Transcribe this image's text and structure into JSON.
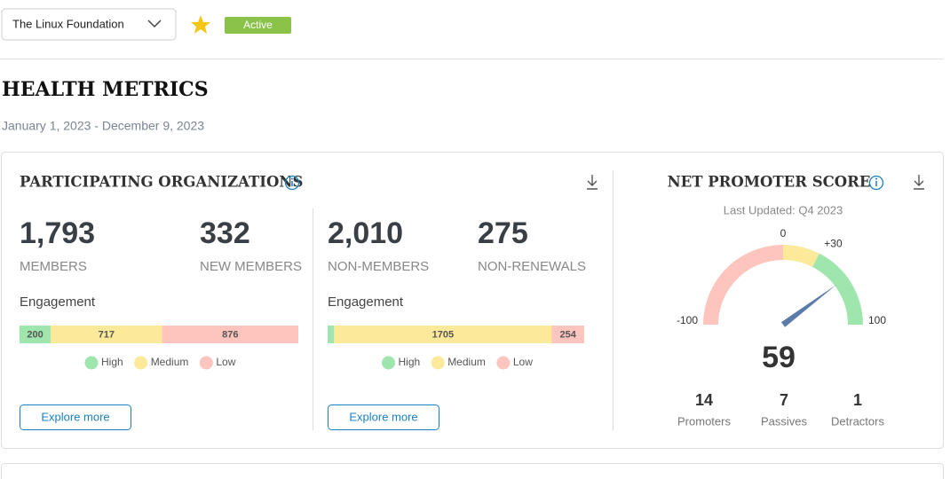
{
  "header": {
    "organization": "The Linux Foundation",
    "status": "Active"
  },
  "page": {
    "title": "HEALTH METRICS",
    "date_range": "January 1, 2023 - December 9, 2023"
  },
  "participating": {
    "title": "PARTICIPATING ORGANIZATIONS",
    "groups": [
      {
        "stats": [
          {
            "value": "1,793",
            "label": "MEMBERS"
          },
          {
            "value": "332",
            "label": "NEW MEMBERS"
          }
        ],
        "engagement_label": "Engagement",
        "segments": [
          {
            "name": "High",
            "value": 200,
            "color": "#9fe5ae"
          },
          {
            "name": "Medium",
            "value": 717,
            "color": "#fde99a"
          },
          {
            "name": "Low",
            "value": 876,
            "color": "#fdc5bd"
          }
        ],
        "button": "Explore more"
      },
      {
        "stats": [
          {
            "value": "2,010",
            "label": "NON-MEMBERS"
          },
          {
            "value": "275",
            "label": "NON-RENEWALS"
          }
        ],
        "engagement_label": "Engagement",
        "segments": [
          {
            "name": "High",
            "value": 51,
            "color": "#9fe5ae"
          },
          {
            "name": "Medium",
            "value": 1705,
            "color": "#fde99a"
          },
          {
            "name": "Low",
            "value": 254,
            "color": "#fdc5bd"
          }
        ],
        "button": "Explore more"
      }
    ]
  },
  "nps": {
    "title": "NET PROMOTER SCORE",
    "last_updated": "Last Updated: Q4 2023",
    "score": 59,
    "gauge": {
      "ticks": [
        -100,
        0,
        {
          "value": 30,
          "label": "+30"
        },
        100
      ],
      "zone_colors": [
        "#fdc5bd",
        "#fde99a",
        "#9fe5ae"
      ],
      "needle_color": "#5b7bab"
    },
    "breakdown": [
      {
        "value": 14,
        "label": "Promoters"
      },
      {
        "value": 7,
        "label": "Passives"
      },
      {
        "value": 1,
        "label": "Detractors"
      }
    ]
  }
}
